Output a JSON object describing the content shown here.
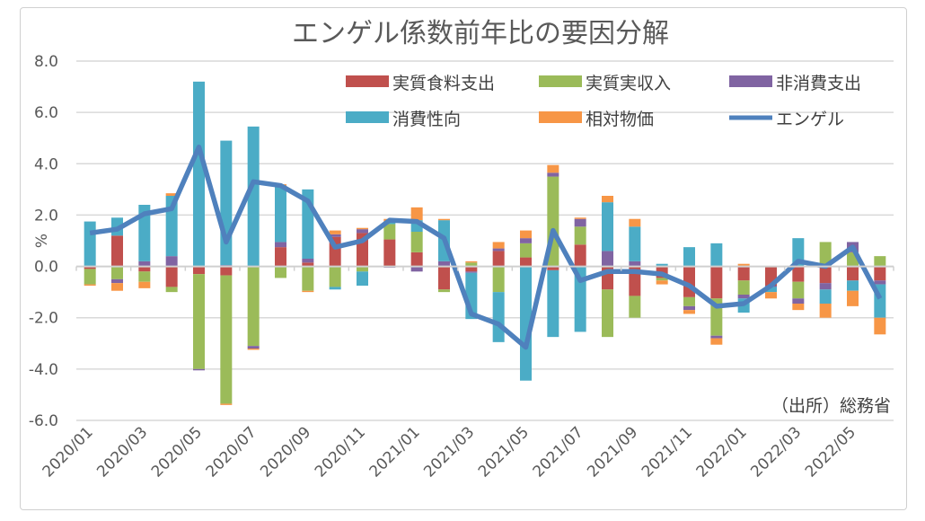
{
  "chart_data": {
    "type": "bar",
    "stacked": true,
    "title": "エンゲル係数前年比の要因分解",
    "ylabel": "%",
    "ylim": [
      -6.0,
      8.0
    ],
    "yticks": [
      "8.0",
      "6.0",
      "4.0",
      "2.0",
      "0.0",
      "-2.0",
      "-4.0",
      "-6.0"
    ],
    "grid": true,
    "legend": "top-right",
    "source_note": "（出所）総務省",
    "categories": [
      "2020/01",
      "2020/02",
      "2020/03",
      "2020/04",
      "2020/05",
      "2020/06",
      "2020/07",
      "2020/08",
      "2020/09",
      "2020/10",
      "2020/11",
      "2020/12",
      "2021/01",
      "2021/02",
      "2021/03",
      "2021/04",
      "2021/05",
      "2021/06",
      "2021/07",
      "2021/08",
      "2021/09",
      "2021/10",
      "2021/11",
      "2021/12",
      "2022/01",
      "2022/02",
      "2022/03",
      "2022/04",
      "2022/05",
      "2022/06"
    ],
    "xtick_labels": [
      "2020/01",
      "2020/03",
      "2020/05",
      "2020/07",
      "2020/09",
      "2020/11",
      "2021/01",
      "2021/03",
      "2021/05",
      "2021/07",
      "2021/09",
      "2021/11",
      "2022/01",
      "2022/03",
      "2022/05"
    ],
    "series": [
      {
        "name": "実質食料支出",
        "type": "bar",
        "color": "#c0504d",
        "values": [
          -0.1,
          1.2,
          -0.2,
          -0.8,
          -0.3,
          -0.35,
          0,
          0.75,
          0.15,
          1.15,
          1.3,
          1.05,
          0.55,
          -0.9,
          -0.2,
          0.6,
          0.35,
          -0.15,
          0.85,
          -0.9,
          -1.15,
          -0.45,
          -1.2,
          -1.25,
          -0.55,
          -0.75,
          -0.6,
          -0.65,
          -0.55,
          -0.55
        ]
      },
      {
        "name": "実質実収入",
        "type": "bar",
        "color": "#9bbb59",
        "values": [
          -0.6,
          -0.5,
          -0.4,
          -0.2,
          -3.7,
          -5.0,
          -3.1,
          -0.45,
          -0.95,
          -0.8,
          -0.2,
          0.6,
          0.8,
          -0.1,
          0.15,
          -1.0,
          0.55,
          3.5,
          0.7,
          -1.85,
          -0.85,
          -0.1,
          -0.35,
          -1.45,
          -0.55,
          0,
          -0.65,
          0.95,
          0.55,
          0.4
        ]
      },
      {
        "name": "非消費支出",
        "type": "bar",
        "color": "#8064a2",
        "values": [
          0,
          -0.15,
          0.2,
          0.4,
          -0.05,
          0.05,
          -0.1,
          0.2,
          0.15,
          0.1,
          0.15,
          -0.05,
          -0.2,
          0.2,
          -0.05,
          0.1,
          0.2,
          0.15,
          0.3,
          0.6,
          0.2,
          0,
          -0.15,
          -0.1,
          -0.15,
          -0.05,
          -0.2,
          -0.25,
          0.4,
          -0.15
        ]
      },
      {
        "name": "消費性向",
        "type": "bar",
        "color": "#4bacc6",
        "values": [
          1.75,
          0.7,
          2.2,
          2.35,
          7.2,
          4.85,
          5.45,
          2.2,
          2.7,
          -0.1,
          -0.55,
          0.1,
          0.45,
          1.6,
          -1.8,
          -1.95,
          -4.45,
          -2.6,
          -2.55,
          1.9,
          1.35,
          0.1,
          0.75,
          0.9,
          -0.55,
          -0.2,
          1.1,
          -0.55,
          -0.4,
          -1.3
        ]
      },
      {
        "name": "相対物価",
        "type": "bar",
        "color": "#f79646",
        "values": [
          -0.05,
          -0.3,
          -0.25,
          0.1,
          0,
          -0.05,
          -0.05,
          0.05,
          -0.05,
          0.15,
          0.05,
          0.1,
          0.5,
          0.05,
          0.05,
          0.25,
          0.3,
          0.3,
          0.05,
          0.25,
          0.3,
          -0.15,
          -0.15,
          -0.25,
          0.1,
          -0.25,
          -0.25,
          -0.55,
          -0.6,
          -0.65
        ]
      },
      {
        "name": "エンゲル",
        "type": "line",
        "color": "#4f81bd",
        "values": [
          1.3,
          1.45,
          2.05,
          2.25,
          4.65,
          0.95,
          3.3,
          3.15,
          2.55,
          0.75,
          1.0,
          1.8,
          1.75,
          1.1,
          -1.85,
          -2.25,
          -3.15,
          1.4,
          -0.55,
          -0.2,
          -0.2,
          -0.3,
          -0.75,
          -1.55,
          -1.45,
          -0.75,
          0.2,
          0,
          0.75,
          -1.25
        ]
      }
    ]
  }
}
